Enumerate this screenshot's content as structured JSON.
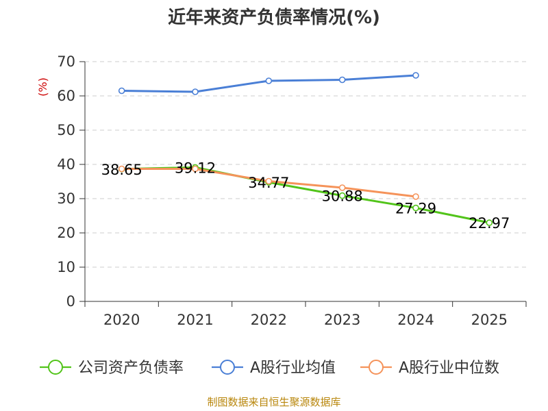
{
  "chart_data": {
    "type": "line",
    "title": "近年来资产负债率情况(%)",
    "ylabel": "(%)",
    "xlabel": "",
    "ylim": [
      0,
      70
    ],
    "yticks": [
      0,
      10,
      20,
      30,
      40,
      50,
      60,
      70
    ],
    "categories": [
      "2020",
      "2021",
      "2022",
      "2023",
      "2024",
      "2025"
    ],
    "grid": true,
    "legend_position": "bottom",
    "series": [
      {
        "name": "公司资产负债率",
        "color": "#52c41a",
        "values": [
          38.65,
          39.12,
          34.77,
          30.88,
          27.29,
          22.97
        ],
        "labels": [
          "38.65",
          "39.12",
          "34.77",
          "30.88",
          "27.29",
          "22.97"
        ]
      },
      {
        "name": "A股行业均值",
        "color": "#4a7fd6",
        "values": [
          61.5,
          61.2,
          64.4,
          64.7,
          66.0,
          null
        ],
        "labels": null
      },
      {
        "name": "A股行业中位数",
        "color": "#f5935a",
        "values": [
          38.7,
          38.7,
          35.1,
          33.2,
          30.6,
          null
        ],
        "labels": null
      }
    ]
  },
  "source": "制图数据来自恒生聚源数据库"
}
